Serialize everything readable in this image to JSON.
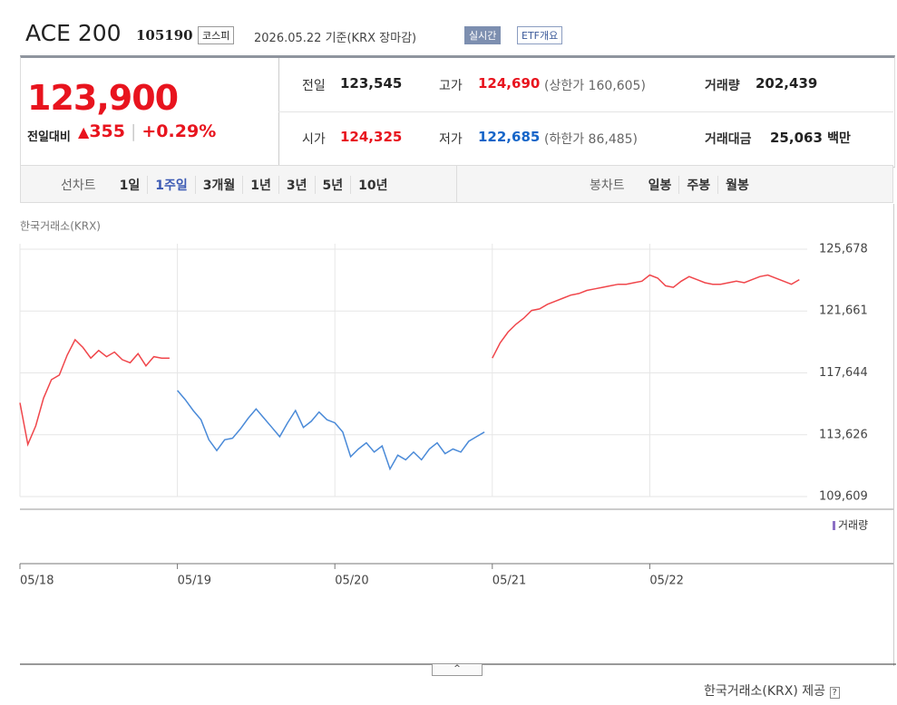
{
  "header": {
    "title": "ACE 200",
    "code": "105190",
    "market": "코스피",
    "date": "2026.05.22 기준(KRX 장마감)",
    "realtime": "실시간",
    "overview": "ETF개요"
  },
  "price": {
    "current": "123,900",
    "change_label": "전일대비",
    "change": "355",
    "change_rate": "+0.29%"
  },
  "stats": [
    {
      "label": "전일",
      "value": "123,545"
    },
    {
      "label": "고가",
      "value": "124,690",
      "note": "(상한가 160,605)"
    },
    {
      "label": "거래량",
      "value": "202,439"
    },
    {
      "label": "시가",
      "value": "124,325"
    },
    {
      "label": "저가",
      "value": "122,685",
      "note": "(하한가 86,485)"
    },
    {
      "label": "거래대금",
      "value": "25,063",
      "unit": "백만"
    }
  ],
  "tabs": {
    "line_label": "선차트",
    "line": [
      "1일",
      "1주일",
      "3개월",
      "1년",
      "3년",
      "5년",
      "10년"
    ],
    "candle_label": "봉차트",
    "candle": [
      "일봉",
      "주봉",
      "월봉"
    ]
  },
  "chart_data": {
    "type": "line",
    "source": "한국거래소(KRX)",
    "volume_label": "거래량",
    "series": [
      {
        "color": "#f0464b",
        "values": [
          115700,
          113000,
          114200,
          116000,
          117200,
          117500,
          118800,
          119800,
          119300,
          118600,
          119100,
          118700,
          119000,
          118500,
          118300,
          118900,
          118100,
          118700,
          118600,
          118600,
          null,
          null,
          null,
          null,
          null,
          null,
          null,
          null,
          null,
          null,
          null,
          null,
          null,
          null,
          null,
          null,
          null,
          null,
          null,
          null,
          null,
          null,
          null,
          null,
          null,
          null,
          null,
          null,
          null,
          null,
          null,
          null,
          null,
          null,
          null,
          null,
          null,
          null,
          null,
          null,
          118600,
          119600,
          120300,
          120800,
          121200,
          121700,
          121800,
          122100,
          122300,
          122500,
          122700,
          122800,
          123000,
          123100,
          123200,
          123300,
          123400,
          123400,
          123500,
          123600,
          124000,
          123800,
          123300,
          123200,
          123600,
          123900,
          123700,
          123500,
          123400,
          123400,
          123500,
          123600,
          123500,
          123700,
          123900,
          124000,
          123800,
          123600,
          123400,
          123700
        ]
      },
      {
        "color": "#4a8ad8",
        "values": [
          null,
          null,
          null,
          null,
          null,
          null,
          null,
          null,
          null,
          null,
          null,
          null,
          null,
          null,
          null,
          null,
          null,
          null,
          null,
          null,
          116500,
          115900,
          115200,
          114600,
          113300,
          112600,
          113300,
          113400,
          114000,
          114700,
          115300,
          114700,
          114100,
          113500,
          114400,
          115200,
          114100,
          114500,
          115100,
          114600,
          114400,
          113800,
          112200,
          112700,
          113100,
          112500,
          112900,
          111400,
          112300,
          112000,
          112500,
          112000,
          112700,
          113100,
          112400,
          112700,
          112500,
          113200,
          113500,
          113800,
          null,
          null,
          null,
          null,
          null,
          null,
          null,
          null,
          null,
          null,
          null,
          null,
          null,
          null,
          null,
          null,
          null,
          null,
          null,
          null,
          null,
          null,
          null,
          null,
          null,
          null,
          null,
          null,
          null,
          null,
          null,
          null,
          null,
          null,
          null,
          null,
          null,
          null,
          null,
          null
        ]
      }
    ],
    "xlim": [
      0,
      100
    ],
    "xticks": [
      {
        "value": 0,
        "label": "05/18"
      },
      {
        "value": 20,
        "label": "05/19"
      },
      {
        "value": 40,
        "label": "05/20"
      },
      {
        "value": 60,
        "label": "05/21"
      },
      {
        "value": 80,
        "label": "05/22"
      }
    ],
    "ylim": [
      109609,
      125678
    ],
    "yticks": [
      {
        "value": 125678,
        "label": "125,678"
      },
      {
        "value": 121661,
        "label": "121,661"
      },
      {
        "value": 117644,
        "label": "117,644"
      },
      {
        "value": 113626,
        "label": "113,626"
      },
      {
        "value": 109609,
        "label": "109,609"
      }
    ],
    "grid": true
  },
  "footer": "한국거래소(KRX) 제공"
}
